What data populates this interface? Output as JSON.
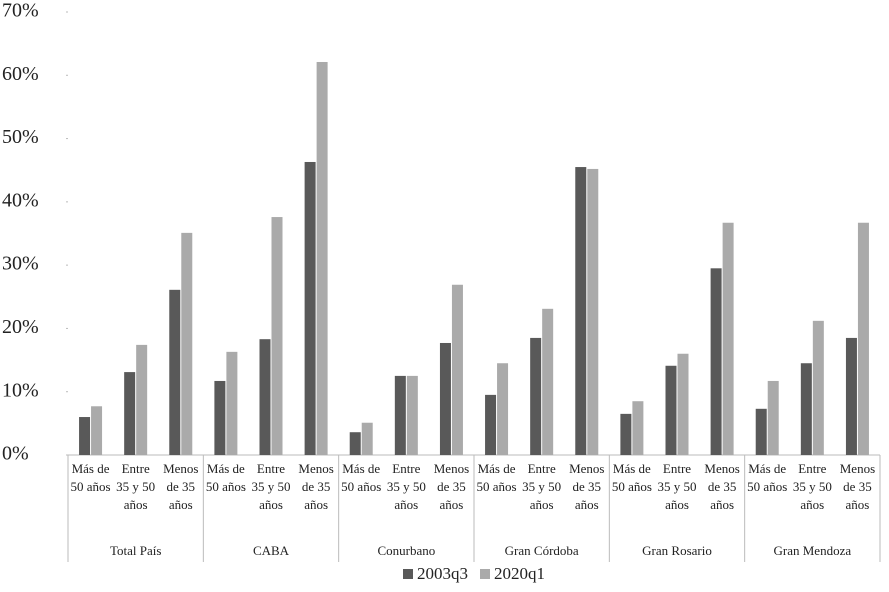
{
  "chart_data": {
    "type": "bar",
    "groups": [
      "Total País",
      "CABA",
      "Conurbano",
      "Gran Córdoba",
      "Gran Rosario",
      "Gran Mendoza"
    ],
    "categories": [
      "Más de 50 años",
      "Entre 35 y 50 años",
      "Menos de 35 años",
      "Más de 50 años",
      "Entre 35 y 50 años",
      "Menos de 35 años",
      "Más de 50 años",
      "Entre 35 y 50 años",
      "Menos de 35 años",
      "Más de 50 años",
      "Entre 35 y 50 años",
      "Menos de 35 años",
      "Más de 50 años",
      "Entre 35 y 50 años",
      "Menos de 35 años",
      "Más de 50 años",
      "Entre 35 y 50 años",
      "Menos de 35 años"
    ],
    "series": [
      {
        "name": "2003q3",
        "color": "#595959",
        "values": [
          6.0,
          13.1,
          26.1,
          11.7,
          18.3,
          46.3,
          3.6,
          12.5,
          17.7,
          9.5,
          18.5,
          45.5,
          6.5,
          14.1,
          29.5,
          7.3,
          14.5,
          18.5
        ]
      },
      {
        "name": "2020q1",
        "color": "#aaaaaa",
        "values": [
          7.7,
          17.4,
          35.1,
          16.3,
          37.6,
          62.1,
          5.1,
          12.5,
          26.9,
          14.5,
          23.1,
          45.2,
          8.5,
          16.0,
          36.7,
          11.7,
          21.2,
          36.7
        ]
      }
    ],
    "ylim": [
      0,
      70
    ],
    "yticks": [
      {
        "value": 0,
        "label": "0%"
      },
      {
        "value": 10,
        "label": "10%"
      },
      {
        "value": 20,
        "label": "20%"
      },
      {
        "value": 30,
        "label": "30%"
      },
      {
        "value": 40,
        "label": "40%"
      },
      {
        "value": 50,
        "label": "50%"
      },
      {
        "value": 60,
        "label": "60%"
      },
      {
        "value": 70,
        "label": "70%"
      }
    ],
    "legend": "bottom"
  }
}
